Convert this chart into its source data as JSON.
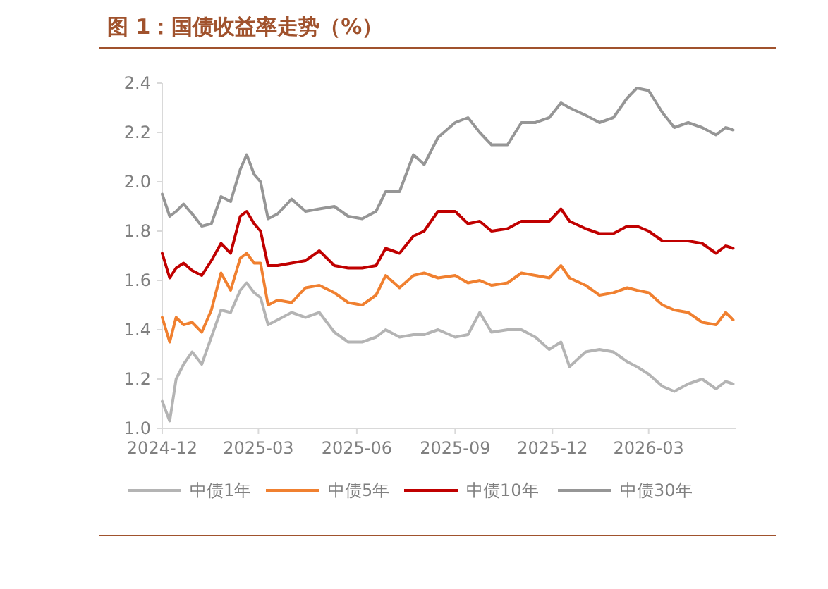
{
  "chart_data": {
    "type": "line",
    "title": "图 1：国债收益率走势（%）",
    "x": [
      "2024-12-01",
      "2024-12-08",
      "2024-12-14",
      "2024-12-21",
      "2024-12-29",
      "2025-01-07",
      "2025-01-16",
      "2025-01-25",
      "2025-02-03",
      "2025-02-12",
      "2025-02-18",
      "2025-02-25",
      "2025-03-03",
      "2025-03-10",
      "2025-03-19",
      "2025-04-01",
      "2025-04-14",
      "2025-04-27",
      "2025-05-11",
      "2025-05-24",
      "2025-06-06",
      "2025-06-19",
      "2025-06-28",
      "2025-07-11",
      "2025-07-24",
      "2025-08-03",
      "2025-08-16",
      "2025-09-01",
      "2025-09-13",
      "2025-09-24",
      "2025-10-05",
      "2025-10-20",
      "2025-11-02",
      "2025-11-15",
      "2025-11-28",
      "2025-12-09",
      "2025-12-17",
      "2026-01-01",
      "2026-01-14",
      "2026-01-27",
      "2026-02-09",
      "2026-02-18",
      "2026-03-01",
      "2026-03-14",
      "2026-03-25",
      "2026-04-07",
      "2026-04-20",
      "2026-05-03",
      "2026-05-12",
      "2026-05-19"
    ],
    "series": [
      {
        "name": "中债1年",
        "color": "#b4b4b4",
        "values": [
          1.11,
          1.03,
          1.2,
          1.26,
          1.31,
          1.26,
          1.37,
          1.48,
          1.47,
          1.56,
          1.59,
          1.55,
          1.53,
          1.42,
          1.44,
          1.47,
          1.45,
          1.47,
          1.39,
          1.35,
          1.35,
          1.37,
          1.4,
          1.37,
          1.38,
          1.38,
          1.4,
          1.37,
          1.38,
          1.47,
          1.39,
          1.4,
          1.4,
          1.37,
          1.32,
          1.35,
          1.25,
          1.31,
          1.32,
          1.31,
          1.27,
          1.25,
          1.22,
          1.17,
          1.15,
          1.18,
          1.2,
          1.16,
          1.19,
          1.18
        ]
      },
      {
        "name": "中债5年",
        "color": "#f08030",
        "values": [
          1.45,
          1.35,
          1.45,
          1.42,
          1.43,
          1.39,
          1.48,
          1.63,
          1.56,
          1.69,
          1.71,
          1.67,
          1.67,
          1.5,
          1.52,
          1.51,
          1.57,
          1.58,
          1.55,
          1.51,
          1.5,
          1.54,
          1.62,
          1.57,
          1.62,
          1.63,
          1.61,
          1.62,
          1.59,
          1.6,
          1.58,
          1.59,
          1.63,
          1.62,
          1.61,
          1.66,
          1.61,
          1.58,
          1.54,
          1.55,
          1.57,
          1.56,
          1.55,
          1.5,
          1.48,
          1.47,
          1.43,
          1.42,
          1.47,
          1.44
        ]
      },
      {
        "name": "中债10年",
        "color": "#c00000",
        "values": [
          1.71,
          1.61,
          1.65,
          1.67,
          1.64,
          1.62,
          1.68,
          1.75,
          1.71,
          1.86,
          1.88,
          1.83,
          1.8,
          1.66,
          1.66,
          1.67,
          1.68,
          1.72,
          1.66,
          1.65,
          1.65,
          1.66,
          1.73,
          1.71,
          1.78,
          1.8,
          1.88,
          1.88,
          1.83,
          1.84,
          1.8,
          1.81,
          1.84,
          1.84,
          1.84,
          1.89,
          1.84,
          1.81,
          1.79,
          1.79,
          1.82,
          1.82,
          1.8,
          1.76,
          1.76,
          1.76,
          1.75,
          1.71,
          1.74,
          1.73
        ]
      },
      {
        "name": "中债30年",
        "color": "#969696",
        "values": [
          1.95,
          1.86,
          1.88,
          1.91,
          1.87,
          1.82,
          1.83,
          1.94,
          1.92,
          2.05,
          2.11,
          2.03,
          2.0,
          1.85,
          1.87,
          1.93,
          1.88,
          1.89,
          1.9,
          1.86,
          1.85,
          1.88,
          1.96,
          1.96,
          2.11,
          2.07,
          2.18,
          2.24,
          2.26,
          2.2,
          2.15,
          2.15,
          2.24,
          2.24,
          2.26,
          2.32,
          2.3,
          2.27,
          2.24,
          2.26,
          2.34,
          2.38,
          2.37,
          2.28,
          2.22,
          2.24,
          2.22,
          2.19,
          2.22,
          2.21
        ]
      }
    ],
    "xlim": [
      "2024-12-01",
      "2026-05-22"
    ],
    "xticks": [
      {
        "value": "2024-12-01",
        "label": "2024-12"
      },
      {
        "value": "2025-03-01",
        "label": "2025-03"
      },
      {
        "value": "2025-06-01",
        "label": "2025-06"
      },
      {
        "value": "2025-09-01",
        "label": "2025-09"
      },
      {
        "value": "2025-12-01",
        "label": "2025-12"
      },
      {
        "value": "2026-03-01",
        "label": "2026-03"
      }
    ],
    "ylim": [
      1.0,
      2.4
    ],
    "yticks": [
      {
        "value": 1.0,
        "label": "1.0"
      },
      1.2,
      1.4,
      1.6,
      1.8,
      {
        "value": 2.0,
        "label": "2.0"
      },
      2.2,
      2.4
    ],
    "legend": "bottom"
  }
}
